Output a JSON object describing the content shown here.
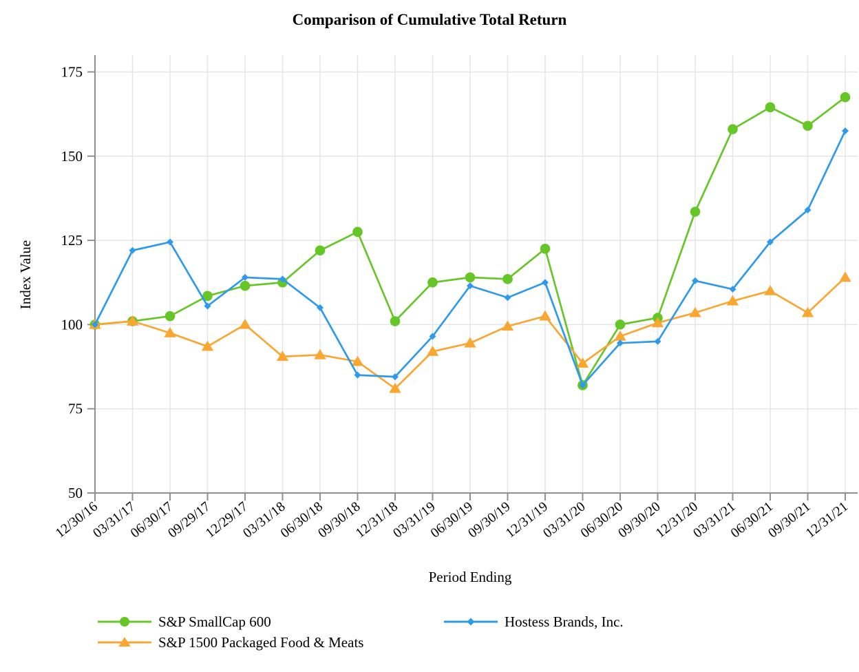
{
  "title": "Comparison of Cumulative Total Return",
  "chart_data": {
    "type": "line",
    "title": "Comparison of Cumulative Total Return",
    "xlabel": "Period Ending",
    "ylabel": "Index Value",
    "ylim": [
      50,
      180
    ],
    "yticks": [
      50,
      75,
      100,
      125,
      150,
      175
    ],
    "grid": true,
    "legend_position": "bottom",
    "categories": [
      "12/30/16",
      "03/31/17",
      "06/30/17",
      "09/29/17",
      "12/29/17",
      "03/31/18",
      "06/30/18",
      "09/30/18",
      "12/31/18",
      "03/31/19",
      "06/30/19",
      "09/30/19",
      "12/31/19",
      "03/31/20",
      "06/30/20",
      "09/30/20",
      "12/31/20",
      "03/31/21",
      "06/30/21",
      "09/30/21",
      "12/31/21"
    ],
    "series": [
      {
        "name": "S&P SmallCap 600",
        "color": "#66C628",
        "marker": "circle",
        "values": [
          100,
          101,
          102.5,
          108.5,
          111.5,
          112.5,
          122,
          127.5,
          101,
          112.5,
          114,
          113.5,
          122.5,
          82,
          100,
          102,
          133.5,
          158,
          164.5,
          159,
          167.5
        ]
      },
      {
        "name": "Hostess Brands, Inc.",
        "color": "#2E9AEC",
        "marker": "diamond",
        "values": [
          100,
          122,
          124.5,
          105.5,
          114,
          113.5,
          105,
          85,
          84.5,
          96.5,
          111.5,
          108,
          112.5,
          82,
          94.5,
          95,
          113,
          110.5,
          124.5,
          134,
          157.5
        ]
      },
      {
        "name": "S&P 1500 Packaged Food & Meats",
        "color": "#FAA632",
        "marker": "triangle",
        "values": [
          100,
          101,
          97.5,
          93.5,
          100,
          90.5,
          91,
          89,
          81,
          92,
          94.5,
          99.5,
          102.5,
          88.5,
          96.5,
          100.5,
          103.5,
          107,
          110,
          103.5,
          114
        ]
      }
    ]
  },
  "styles": {
    "axis_color": "#8F8F8F",
    "grid_color": "#E5E5E5",
    "text_color": "#000000"
  }
}
